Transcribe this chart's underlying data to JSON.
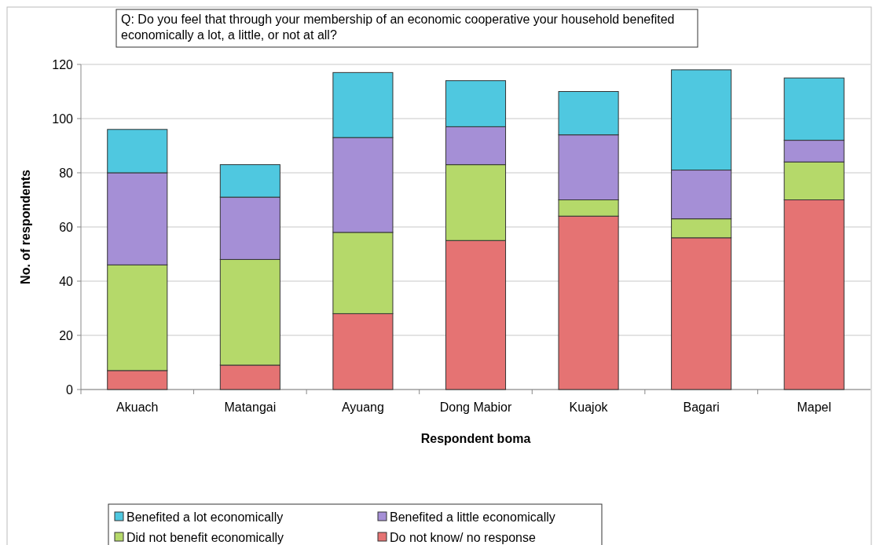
{
  "chart_data": {
    "type": "bar",
    "stacked": true,
    "title": "Q: Do you feel that through your membership of an economic cooperative your household benefited economically a lot, a little, or not at all?",
    "xlabel": "Respondent boma",
    "ylabel": "No. of respondents",
    "categories": [
      "Akuach",
      "Matangai",
      "Ayuang",
      "Dong Mabior",
      "Kuajok",
      "Bagari",
      "Mapel"
    ],
    "series": [
      {
        "name": "Do not know/ no response",
        "color": "#e57373",
        "values": [
          7,
          9,
          28,
          55,
          64,
          56,
          70
        ]
      },
      {
        "name": "Did not benefit economically",
        "color": "#b5d96a",
        "values": [
          39,
          39,
          30,
          28,
          6,
          7,
          14
        ]
      },
      {
        "name": "Benefited a little economically",
        "color": "#a58fd6",
        "values": [
          34,
          23,
          35,
          14,
          24,
          18,
          8
        ]
      },
      {
        "name": "Benefited a lot economically",
        "color": "#4fc8e0",
        "values": [
          16,
          12,
          24,
          17,
          16,
          37,
          23
        ]
      }
    ],
    "ylim": [
      0,
      120
    ],
    "yticks": [
      0,
      20,
      40,
      60,
      80,
      100,
      120
    ],
    "grid": "y",
    "legend": "bottom"
  }
}
